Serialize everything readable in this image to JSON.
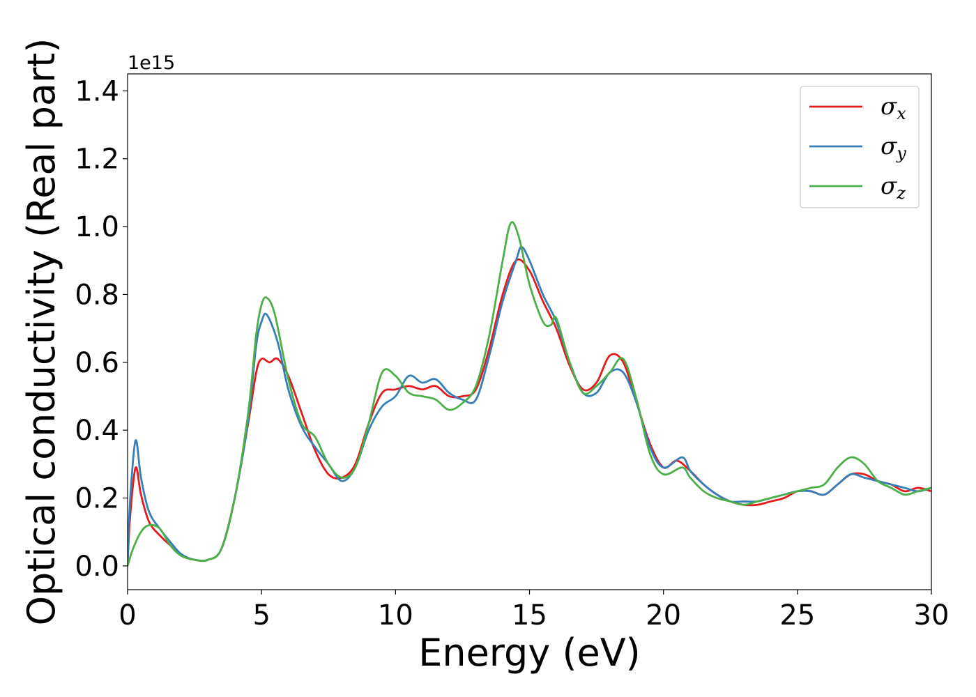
{
  "chart_data": {
    "type": "line",
    "xlabel": "Energy (eV)",
    "ylabel": "Optical conductivity (Real part)",
    "y_offset_label": "1e15",
    "xlim": [
      0,
      30
    ],
    "ylim": [
      -0.07,
      1.45
    ],
    "y_unit_multiplier": 1000000000000000.0,
    "xticks": [
      0,
      5,
      10,
      15,
      20,
      25,
      30
    ],
    "xtick_labels": [
      "0",
      "5",
      "10",
      "15",
      "20",
      "25",
      "30"
    ],
    "yticks": [
      0.0,
      0.2,
      0.4,
      0.6,
      0.8,
      1.0,
      1.2,
      1.4
    ],
    "ytick_labels": [
      "0.0",
      "0.2",
      "0.4",
      "0.6",
      "0.8",
      "1.0",
      "1.2",
      "1.4"
    ],
    "grid": false,
    "legend_position": "top-right",
    "series": [
      {
        "name": "σx",
        "legend_symbol": "σ",
        "legend_sub": "x",
        "color": "#e41a1c",
        "x": [
          0,
          0.1,
          0.3,
          0.5,
          0.8,
          1.2,
          1.6,
          2.0,
          2.5,
          3.0,
          3.5,
          4.0,
          4.5,
          4.8,
          5.0,
          5.3,
          5.6,
          6.0,
          6.5,
          7.0,
          7.5,
          8.0,
          8.5,
          9.0,
          9.5,
          10.0,
          10.5,
          11.0,
          11.5,
          12.0,
          12.5,
          13.0,
          13.5,
          14.0,
          14.5,
          15.0,
          15.5,
          16.0,
          16.5,
          17.0,
          17.5,
          18.0,
          18.5,
          19.0,
          19.5,
          20.0,
          20.5,
          21.0,
          21.5,
          22.0,
          22.5,
          23.0,
          23.5,
          24.0,
          24.5,
          25.0,
          25.5,
          26.0,
          26.5,
          27.0,
          27.5,
          28.0,
          28.5,
          29.0,
          29.5,
          30.0
        ],
        "y": [
          0.01,
          0.15,
          0.29,
          0.21,
          0.13,
          0.09,
          0.06,
          0.03,
          0.018,
          0.018,
          0.05,
          0.2,
          0.42,
          0.57,
          0.61,
          0.6,
          0.61,
          0.56,
          0.45,
          0.34,
          0.27,
          0.26,
          0.3,
          0.42,
          0.51,
          0.52,
          0.53,
          0.52,
          0.53,
          0.5,
          0.5,
          0.52,
          0.64,
          0.8,
          0.9,
          0.87,
          0.78,
          0.7,
          0.59,
          0.52,
          0.54,
          0.62,
          0.6,
          0.48,
          0.36,
          0.29,
          0.31,
          0.28,
          0.24,
          0.21,
          0.19,
          0.18,
          0.18,
          0.19,
          0.2,
          0.22,
          0.22,
          0.21,
          0.24,
          0.27,
          0.27,
          0.25,
          0.24,
          0.22,
          0.23,
          0.22
        ]
      },
      {
        "name": "σy",
        "legend_symbol": "σ",
        "legend_sub": "y",
        "color": "#377eb8",
        "x": [
          0,
          0.1,
          0.3,
          0.5,
          0.8,
          1.2,
          1.6,
          2.0,
          2.5,
          3.0,
          3.5,
          4.0,
          4.5,
          4.8,
          5.0,
          5.2,
          5.6,
          6.0,
          6.5,
          7.0,
          7.5,
          8.0,
          8.5,
          9.0,
          9.5,
          10.0,
          10.5,
          11.0,
          11.5,
          12.0,
          12.5,
          13.0,
          13.5,
          14.0,
          14.5,
          14.7,
          15.0,
          15.5,
          16.0,
          16.5,
          17.0,
          17.5,
          18.0,
          18.5,
          19.0,
          19.5,
          20.0,
          20.7,
          21.0,
          21.5,
          22.0,
          22.5,
          23.0,
          23.5,
          24.0,
          24.5,
          25.0,
          25.5,
          26.0,
          26.5,
          27.0,
          27.5,
          28.0,
          28.5,
          29.0,
          29.5,
          30.0
        ],
        "y": [
          0.01,
          0.2,
          0.37,
          0.26,
          0.16,
          0.11,
          0.07,
          0.035,
          0.018,
          0.018,
          0.05,
          0.2,
          0.43,
          0.65,
          0.72,
          0.74,
          0.66,
          0.52,
          0.41,
          0.35,
          0.3,
          0.25,
          0.29,
          0.4,
          0.47,
          0.5,
          0.56,
          0.54,
          0.55,
          0.51,
          0.49,
          0.49,
          0.62,
          0.78,
          0.9,
          0.94,
          0.9,
          0.8,
          0.72,
          0.6,
          0.51,
          0.51,
          0.57,
          0.57,
          0.48,
          0.35,
          0.29,
          0.32,
          0.28,
          0.24,
          0.21,
          0.19,
          0.19,
          0.19,
          0.2,
          0.21,
          0.22,
          0.22,
          0.21,
          0.24,
          0.27,
          0.26,
          0.25,
          0.24,
          0.23,
          0.22,
          0.23
        ]
      },
      {
        "name": "σz",
        "legend_symbol": "σ",
        "legend_sub": "z",
        "color": "#4daf4a",
        "x": [
          0,
          0.2,
          0.5,
          0.8,
          1.2,
          1.6,
          2.0,
          2.5,
          3.0,
          3.5,
          4.0,
          4.5,
          4.8,
          5.0,
          5.2,
          5.5,
          6.0,
          6.5,
          7.0,
          7.5,
          8.0,
          8.5,
          9.0,
          9.5,
          10.0,
          10.5,
          11.0,
          11.5,
          12.0,
          12.5,
          13.0,
          13.5,
          14.0,
          14.3,
          14.6,
          15.0,
          15.5,
          15.8,
          16.0,
          16.5,
          17.0,
          17.5,
          18.0,
          18.5,
          19.0,
          19.5,
          20.0,
          20.7,
          21.0,
          21.5,
          22.0,
          22.5,
          23.0,
          23.5,
          24.0,
          24.5,
          25.0,
          25.5,
          26.0,
          26.5,
          27.0,
          27.5,
          28.0,
          28.5,
          29.0,
          29.5,
          30.0
        ],
        "y": [
          0.0,
          0.05,
          0.1,
          0.12,
          0.11,
          0.06,
          0.03,
          0.018,
          0.018,
          0.05,
          0.2,
          0.45,
          0.68,
          0.77,
          0.79,
          0.74,
          0.55,
          0.42,
          0.38,
          0.3,
          0.26,
          0.29,
          0.42,
          0.57,
          0.56,
          0.51,
          0.5,
          0.49,
          0.46,
          0.48,
          0.53,
          0.68,
          0.9,
          1.01,
          0.97,
          0.83,
          0.72,
          0.71,
          0.73,
          0.6,
          0.51,
          0.53,
          0.57,
          0.61,
          0.49,
          0.33,
          0.27,
          0.29,
          0.26,
          0.22,
          0.2,
          0.19,
          0.18,
          0.19,
          0.2,
          0.21,
          0.22,
          0.23,
          0.24,
          0.29,
          0.32,
          0.3,
          0.25,
          0.23,
          0.21,
          0.22,
          0.23
        ]
      }
    ]
  }
}
